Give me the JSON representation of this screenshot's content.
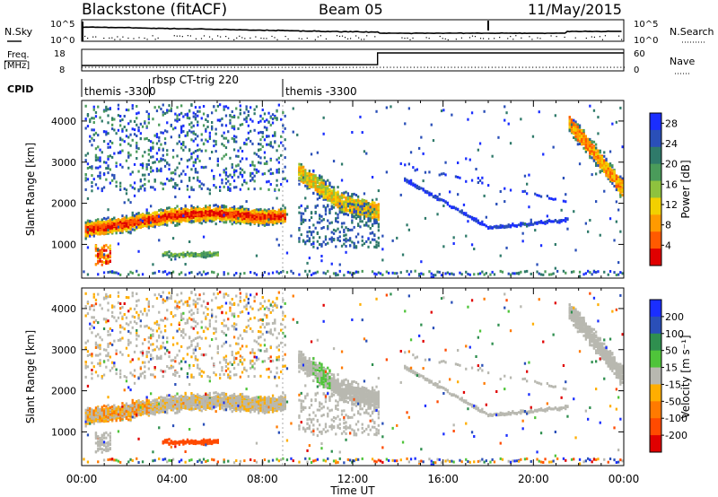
{
  "header": {
    "station": "Blackstone (fitACF)",
    "beam": "Beam 05",
    "date": "11/May/2015"
  },
  "panel_labels": {
    "nsky": "N.Sky",
    "freq_line1": "Freq.",
    "freq_line2": "[MHz]",
    "cpid": "CPID",
    "nsearch": "N.Search",
    "nave": "Nave"
  },
  "noise_axis": {
    "left_top": "10^5",
    "left_bottom": "10^0",
    "right_top": "10^5",
    "right_bottom": "10^0"
  },
  "freq_axis": {
    "left_top": "18",
    "left_bottom": "8",
    "right_top": "60",
    "right_bottom": "0"
  },
  "cpid_segments": [
    {
      "label": "themis -3300",
      "start_hour": 0.0
    },
    {
      "label": "rbsp CT-trig 220",
      "start_hour": 3.0
    },
    {
      "label": "themis -3300",
      "start_hour": 8.9
    }
  ],
  "chart_data": [
    {
      "type": "heatmap",
      "ylabel": "Slant Range [km]",
      "xlabel": "Time UT",
      "x_ticks": [
        "00:00",
        "04:00",
        "08:00",
        "12:00",
        "16:00",
        "20:00",
        "00:00"
      ],
      "y_ticks": [
        1000,
        2000,
        3000,
        4000
      ],
      "ylim": [
        180,
        4500
      ],
      "xlim_hours": [
        0,
        24
      ],
      "colorbar": {
        "label": "Power [dB]",
        "ticks": [
          4,
          8,
          12,
          16,
          20,
          24,
          28
        ],
        "range": [
          0,
          30
        ],
        "colors": [
          "#1a2eff",
          "#2a4fb8",
          "#2f7a6a",
          "#4a9b5a",
          "#8ec23e",
          "#f2d000",
          "#ff9a00",
          "#ff5a00",
          "#e00000"
        ]
      },
      "features": [
        {
          "name": "main band",
          "t": [
            0.1,
            2,
            4,
            6,
            8,
            9
          ],
          "range_km": [
            1350,
            1500,
            1700,
            1750,
            1650,
            1700
          ]
        },
        {
          "name": "late band",
          "t": [
            9.5,
            11.5,
            13.1
          ],
          "range_km": [
            2800,
            2000,
            1800
          ]
        },
        {
          "name": "arc",
          "t": [
            14.2,
            18,
            21.5
          ],
          "range_km": [
            2600,
            1400,
            1600
          ]
        },
        {
          "name": "evening band",
          "t": [
            21.5,
            24
          ],
          "range_km": [
            4000,
            2300
          ]
        }
      ]
    },
    {
      "type": "heatmap",
      "ylabel": "Slant Range [km]",
      "xlabel": "Time UT",
      "x_ticks": [
        "00:00",
        "04:00",
        "08:00",
        "12:00",
        "16:00",
        "20:00",
        "00:00"
      ],
      "y_ticks": [
        1000,
        2000,
        3000,
        4000
      ],
      "ylim": [
        180,
        4500
      ],
      "xlim_hours": [
        0,
        24
      ],
      "colorbar": {
        "label": "Velocity [m s⁻¹]",
        "ticks": [
          200,
          100,
          50,
          15,
          -15,
          -50,
          -100,
          -200
        ],
        "range": [
          -250,
          250
        ],
        "colors": [
          "#1a2eff",
          "#2a4fb8",
          "#2f8f4f",
          "#4fc43a",
          "#b8b8b0",
          "#ffae00",
          "#ff7a00",
          "#ff4a00",
          "#e00000"
        ]
      }
    }
  ]
}
